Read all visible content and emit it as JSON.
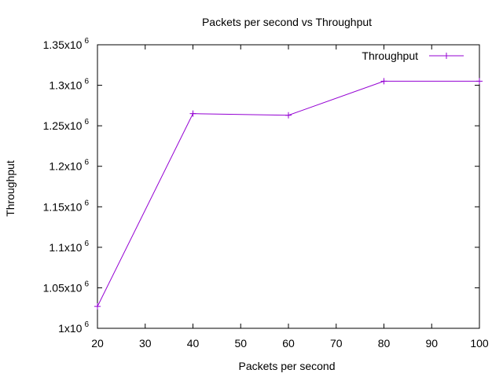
{
  "chart_data": {
    "type": "line",
    "title": "Packets per second vs Throughput",
    "xlabel": "Packets per second",
    "ylabel": "Throughput",
    "xlim": [
      20,
      100
    ],
    "ylim": [
      1000000,
      1350000
    ],
    "x_ticks": [
      20,
      30,
      40,
      50,
      60,
      70,
      80,
      90,
      100
    ],
    "y_ticks": [
      1000000,
      1050000,
      1100000,
      1150000,
      1200000,
      1250000,
      1300000,
      1350000
    ],
    "y_tick_labels": [
      {
        "mantissa": "1",
        "base": "x10",
        "exp": "6"
      },
      {
        "mantissa": "1.05",
        "base": "x10",
        "exp": "6"
      },
      {
        "mantissa": "1.1",
        "base": "x10",
        "exp": "6"
      },
      {
        "mantissa": "1.15",
        "base": "x10",
        "exp": "6"
      },
      {
        "mantissa": "1.2",
        "base": "x10",
        "exp": "6"
      },
      {
        "mantissa": "1.25",
        "base": "x10",
        "exp": "6"
      },
      {
        "mantissa": "1.3",
        "base": "x10",
        "exp": "6"
      },
      {
        "mantissa": "1.35",
        "base": "x10",
        "exp": "6"
      }
    ],
    "grid": false,
    "legend": {
      "position": "top-right"
    },
    "series": [
      {
        "name": "Throughput",
        "color": "#9400D3",
        "marker": "plus",
        "x": [
          20,
          40,
          60,
          80,
          100
        ],
        "y": [
          1027000,
          1265000,
          1263000,
          1305000,
          1305000
        ]
      }
    ]
  }
}
